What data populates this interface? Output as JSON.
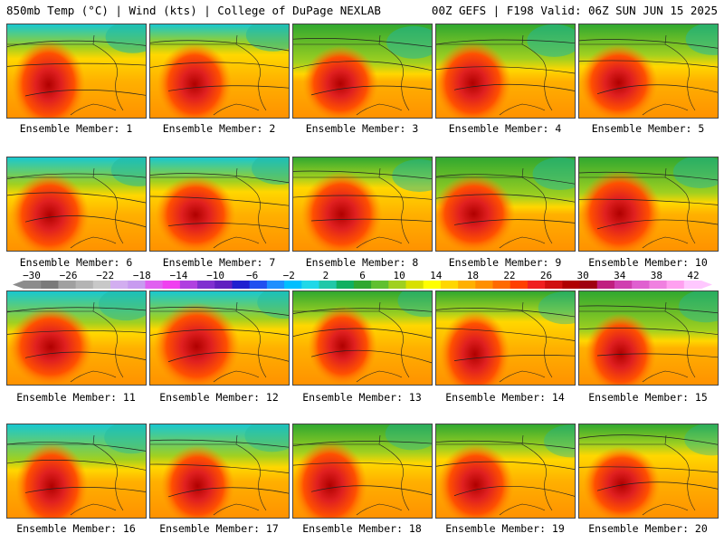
{
  "header": {
    "left_title": "850mb Temp (°C) | Wind (kts) | College of DuPage NEXLAB",
    "right_title": "00Z GEFS | F198 Valid: 06Z SUN JUN 15 2025"
  },
  "members": [
    {
      "label": "Ensemble Member: 1"
    },
    {
      "label": "Ensemble Member: 2"
    },
    {
      "label": "Ensemble Member: 3"
    },
    {
      "label": "Ensemble Member: 4"
    },
    {
      "label": "Ensemble Member: 5"
    },
    {
      "label": "Ensemble Member: 6"
    },
    {
      "label": "Ensemble Member: 7"
    },
    {
      "label": "Ensemble Member: 8"
    },
    {
      "label": "Ensemble Member: 9"
    },
    {
      "label": "Ensemble Member: 10"
    },
    {
      "label": "Ensemble Member: 11"
    },
    {
      "label": "Ensemble Member: 12"
    },
    {
      "label": "Ensemble Member: 13"
    },
    {
      "label": "Ensemble Member: 14"
    },
    {
      "label": "Ensemble Member: 15"
    },
    {
      "label": "Ensemble Member: 16"
    },
    {
      "label": "Ensemble Member: 17"
    },
    {
      "label": "Ensemble Member: 18"
    },
    {
      "label": "Ensemble Member: 19"
    },
    {
      "label": "Ensemble Member: 20"
    }
  ],
  "colorbar": {
    "tick_labels": [
      "−30",
      "−26",
      "−22",
      "−18",
      "−14",
      "−10",
      "−6",
      "−2",
      "2",
      "6",
      "10",
      "14",
      "18",
      "22",
      "26",
      "30",
      "34",
      "38",
      "42"
    ],
    "colors": [
      "#8c8c8c",
      "#7a7a7a",
      "#a0a0a0",
      "#b4b4b4",
      "#c8c8c8",
      "#d2aef0",
      "#c89bf0",
      "#e060f0",
      "#f040f0",
      "#b040e0",
      "#8030d0",
      "#6020c0",
      "#2020d0",
      "#2050f0",
      "#1e90ff",
      "#00bfff",
      "#20d8e8",
      "#20c8a8",
      "#10b060",
      "#30a830",
      "#60c030",
      "#a0d020",
      "#d8e000",
      "#ffff00",
      "#ffd700",
      "#ffb000",
      "#ff9000",
      "#ff6a00",
      "#ff4000",
      "#f02020",
      "#d01010",
      "#b00000",
      "#a00010",
      "#c02080",
      "#d040b0",
      "#e060d0",
      "#f080e0",
      "#ffa0f0",
      "#ffc8ff"
    ]
  }
}
